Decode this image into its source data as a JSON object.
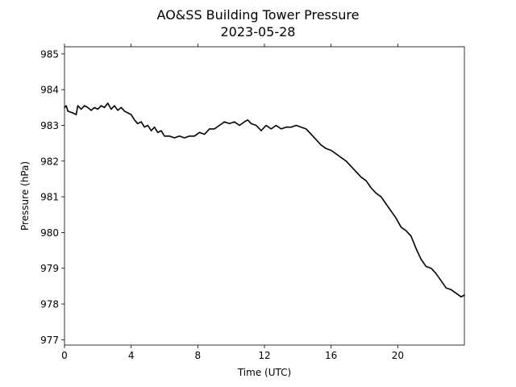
{
  "chart_data": {
    "type": "line",
    "title": "AO&SS Building Tower Pressure",
    "subtitle": "2023-05-28",
    "xlabel": "Time (UTC)",
    "ylabel": "Pressure (hPa)",
    "xlim": [
      0,
      24
    ],
    "ylim": [
      976.85,
      985.2
    ],
    "xticks": [
      0,
      4,
      8,
      12,
      16,
      20
    ],
    "yticks": [
      977,
      978,
      979,
      980,
      981,
      982,
      983,
      984,
      985
    ],
    "grid": false,
    "line_color": "#000000",
    "series": [
      {
        "x": [
          0,
          0.1,
          0.2,
          0.3,
          0.5,
          0.7,
          0.8,
          1.0,
          1.2,
          1.4,
          1.6,
          1.8,
          2.0,
          2.2,
          2.4,
          2.6,
          2.8,
          3.0,
          3.2,
          3.4,
          3.6,
          3.8,
          4.0,
          4.2,
          4.4,
          4.6,
          4.8,
          5.0,
          5.2,
          5.4,
          5.6,
          5.8,
          6.0,
          6.3,
          6.6,
          6.9,
          7.2,
          7.5,
          7.8,
          8.1,
          8.4,
          8.7,
          9.0,
          9.3,
          9.6,
          9.9,
          10.2,
          10.5,
          10.8,
          11.0,
          11.2,
          11.5,
          11.8,
          12.1,
          12.4,
          12.7,
          13.0,
          13.3,
          13.6,
          13.9,
          14.2,
          14.5,
          14.8,
          15.1,
          15.4,
          15.7,
          16.0,
          16.3,
          16.6,
          16.9,
          17.2,
          17.5,
          17.8,
          18.1,
          18.4,
          18.7,
          19.0,
          19.3,
          19.6,
          19.9,
          20.2,
          20.5,
          20.8,
          21.1,
          21.4,
          21.7,
          22.0,
          22.3,
          22.6,
          22.9,
          23.2,
          23.5,
          23.8,
          24.0
        ],
        "y": [
          983.5,
          983.55,
          983.4,
          983.38,
          983.35,
          983.3,
          983.55,
          983.45,
          983.55,
          983.5,
          983.42,
          983.5,
          983.45,
          983.55,
          983.5,
          983.62,
          983.45,
          983.55,
          983.42,
          983.5,
          983.4,
          983.35,
          983.3,
          983.15,
          983.05,
          983.1,
          982.95,
          983.0,
          982.85,
          982.95,
          982.8,
          982.85,
          982.7,
          982.7,
          982.65,
          982.7,
          982.65,
          982.7,
          982.7,
          982.8,
          982.75,
          982.9,
          982.9,
          983.0,
          983.1,
          983.05,
          983.1,
          983.0,
          983.1,
          983.15,
          983.05,
          983.0,
          982.85,
          983.0,
          982.9,
          983.0,
          982.9,
          982.95,
          982.95,
          983.0,
          982.95,
          982.9,
          982.75,
          982.6,
          982.45,
          982.35,
          982.3,
          982.2,
          982.1,
          982.0,
          981.85,
          981.7,
          981.55,
          981.45,
          981.25,
          981.1,
          981.0,
          980.8,
          980.6,
          980.4,
          980.15,
          980.05,
          979.9,
          979.55,
          979.25,
          979.05,
          979.0,
          978.85,
          978.65,
          978.45,
          978.4,
          978.3,
          978.2,
          978.25
        ]
      }
    ]
  }
}
